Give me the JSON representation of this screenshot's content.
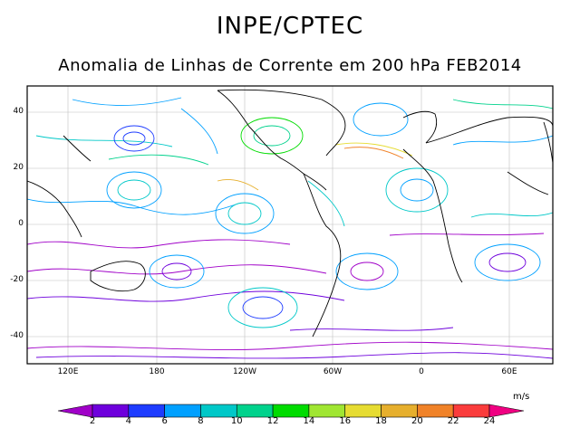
{
  "header": {
    "title": "INPE/CPTEC",
    "subtitle": "Anomalia de Linhas de Corrente em 200 hPa FEB2014"
  },
  "map": {
    "lat_ticks": [
      "40",
      "20",
      "0",
      "-20",
      "-40"
    ],
    "lon_ticks": [
      "120E",
      "180",
      "120W",
      "60W",
      "0",
      "60E"
    ]
  },
  "colorbar": {
    "units": "m/s",
    "labels": [
      "2",
      "4",
      "6",
      "8",
      "10",
      "12",
      "14",
      "16",
      "18",
      "20",
      "22",
      "24"
    ],
    "colors": [
      "#a000c8",
      "#6e00dc",
      "#1e3cff",
      "#00a0ff",
      "#00c8c8",
      "#00d28c",
      "#00dc00",
      "#a0e632",
      "#e6dc32",
      "#e6af2d",
      "#f08228",
      "#fa3c3c",
      "#f00082"
    ]
  }
}
